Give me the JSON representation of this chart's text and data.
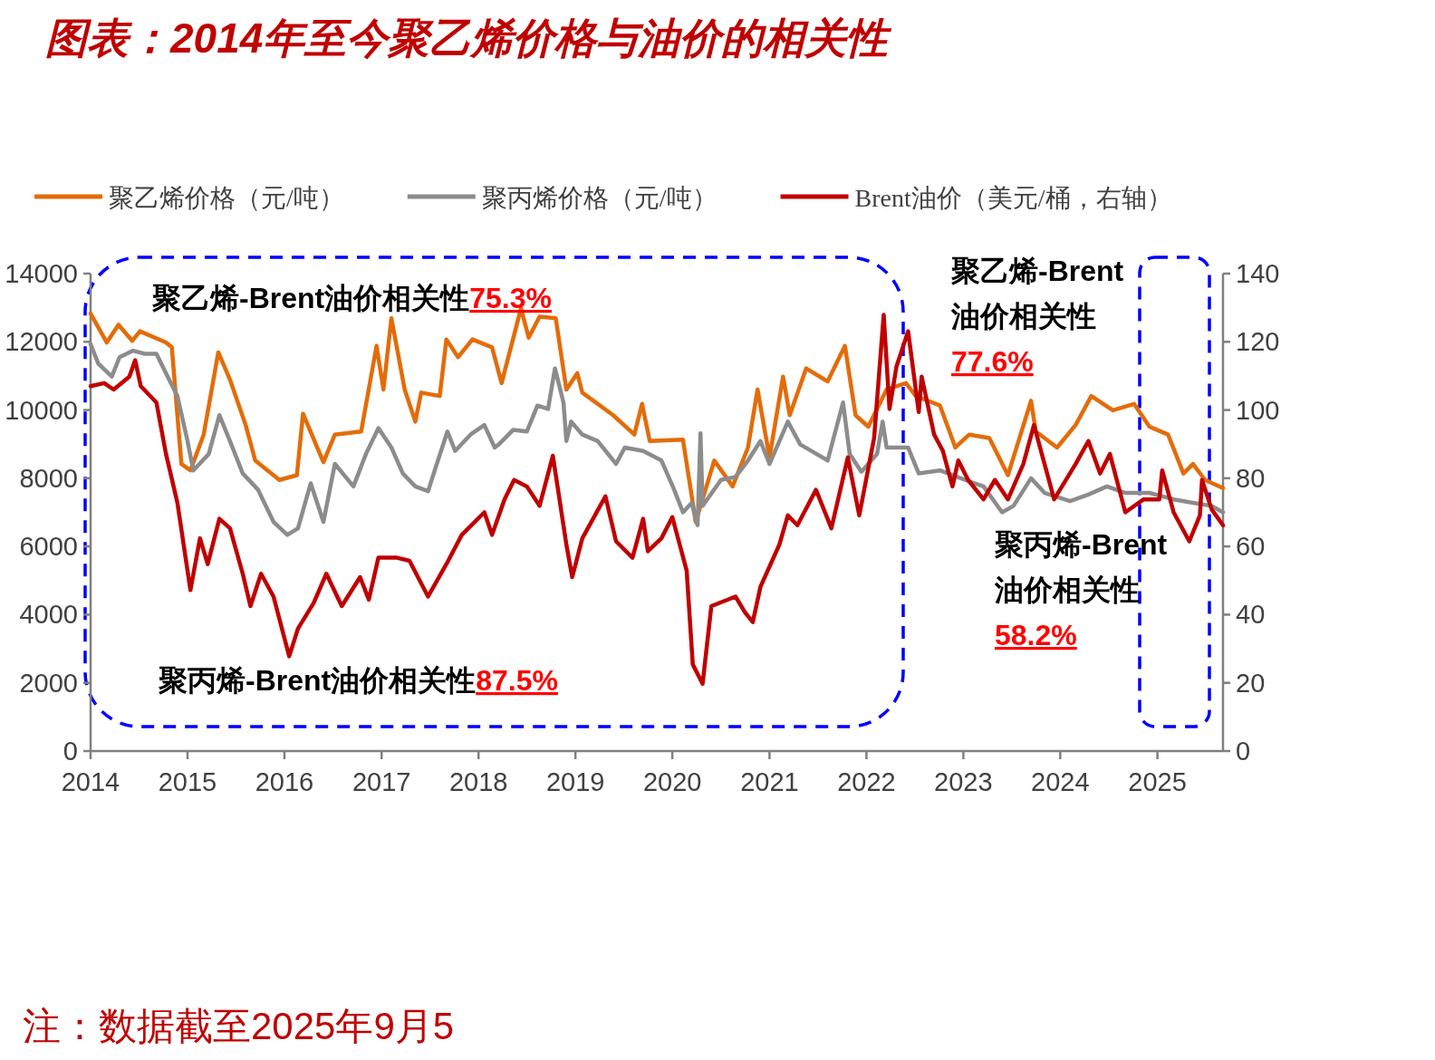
{
  "chart_data": {
    "type": "line",
    "title": "图表：2014年至今聚乙烯价格与油价的相关性",
    "xlim": [
      "2014-01-01",
      "2025-09-05"
    ],
    "xticks": [
      "2014",
      "2015",
      "2016",
      "2017",
      "2018",
      "2019",
      "2020",
      "2021",
      "2022",
      "2023",
      "2024",
      "2025"
    ],
    "ylim": [
      0,
      14000
    ],
    "yticks": [
      0,
      2000,
      4000,
      6000,
      8000,
      10000,
      12000,
      14000
    ],
    "y2lim": [
      0,
      140
    ],
    "y2ticks": [
      0,
      20,
      40,
      60,
      80,
      100,
      120,
      140
    ],
    "legend": "top",
    "grid": false,
    "line_style": "solid",
    "series": [
      {
        "name": "聚乙烯价格（元/吨）",
        "color": "#e36c09",
        "x": [
          "2014-01-01",
          "2014-03-03",
          "2014-04-16",
          "2014-06-07",
          "2014-07-06",
          "2014-10-12",
          "2014-11-03",
          "2014-12-09",
          "2015-01-12",
          "2015-03-03",
          "2015-04-27",
          "2015-06-10",
          "2015-08-08",
          "2015-09-13",
          "2015-12-13",
          "2016-02-17",
          "2016-03-11",
          "2016-05-27",
          "2016-07-09",
          "2016-10-16",
          "2016-12-13",
          "2017-01-08",
          "2017-02-07",
          "2017-03-29",
          "2017-05-08",
          "2017-05-30",
          "2017-08-08",
          "2017-09-02",
          "2017-10-16",
          "2017-12-09",
          "2018-02-21",
          "2018-03-29",
          "2018-06-10",
          "2018-07-09",
          "2018-08-19",
          "2018-10-19",
          "2018-11-28",
          "2019-01-08",
          "2019-01-27",
          "2019-05-23",
          "2019-08-11",
          "2019-09-09",
          "2019-10-08",
          "2020-02-10",
          "2020-03-29",
          "2020-06-07",
          "2020-08-15",
          "2020-10-12",
          "2020-11-17",
          "2021-01-01",
          "2021-02-21",
          "2021-03-18",
          "2021-05-19",
          "2021-08-08",
          "2021-10-12",
          "2021-11-21",
          "2022-01-08",
          "2022-03-18",
          "2022-05-30",
          "2022-07-06",
          "2022-10-05",
          "2022-12-02",
          "2023-01-23",
          "2023-04-09",
          "2023-06-18",
          "2023-09-13",
          "2023-10-01",
          "2023-12-20",
          "2024-02-28",
          "2024-04-27",
          "2024-07-17",
          "2024-10-05",
          "2024-12-02",
          "2025-02-10",
          "2025-04-09",
          "2025-05-15",
          "2025-06-29",
          "2025-09-05"
        ],
        "values": [
          12830,
          11980,
          12500,
          12030,
          12310,
          11980,
          11840,
          8420,
          8230,
          9280,
          11690,
          10890,
          9560,
          8520,
          7950,
          8090,
          9890,
          8470,
          9280,
          9370,
          11880,
          10600,
          12690,
          10600,
          9660,
          10510,
          10410,
          12070,
          11550,
          12070,
          11840,
          10790,
          12980,
          12120,
          12740,
          12690,
          10600,
          11080,
          10510,
          9850,
          9280,
          10180,
          9090,
          9130,
          6720,
          8520,
          7760,
          8900,
          10600,
          8610,
          10980,
          9850,
          11220,
          10840,
          11880,
          9850,
          9510,
          10600,
          10790,
          10410,
          10130,
          8900,
          9280,
          9180,
          8090,
          10270,
          9370,
          8900,
          9560,
          10410,
          9990,
          10180,
          9510,
          9280,
          8140,
          8420,
          7950,
          7710
        ]
      },
      {
        "name": "聚丙烯价格（元/吨）",
        "color": "#8c8c8c",
        "x": [
          "2014-01-01",
          "2014-01-30",
          "2014-03-22",
          "2014-04-20",
          "2014-06-10",
          "2014-07-24",
          "2014-09-06",
          "2014-10-12",
          "2014-11-24",
          "2015-01-01",
          "2015-01-23",
          "2015-03-22",
          "2015-05-01",
          "2015-06-10",
          "2015-07-28",
          "2015-09-24",
          "2015-11-21",
          "2016-01-12",
          "2016-02-21",
          "2016-04-09",
          "2016-05-27",
          "2016-07-09",
          "2016-09-17",
          "2016-11-03",
          "2016-12-20",
          "2017-02-07",
          "2017-03-22",
          "2017-05-08",
          "2017-06-25",
          "2017-07-28",
          "2017-09-06",
          "2017-10-05",
          "2017-12-02",
          "2018-01-23",
          "2018-03-03",
          "2018-03-18",
          "2018-05-12",
          "2018-07-02",
          "2018-08-11",
          "2018-09-20",
          "2018-10-16",
          "2018-11-17",
          "2018-11-28",
          "2018-12-16",
          "2019-01-27",
          "2019-03-26",
          "2019-06-03",
          "2019-07-06",
          "2019-09-13",
          "2019-11-21",
          "2020-01-08",
          "2020-02-10",
          "2020-03-14",
          "2020-04-05",
          "2020-04-16",
          "2020-04-24",
          "2020-07-02",
          "2020-08-26",
          "2020-10-12",
          "2020-11-28",
          "2021-01-01",
          "2021-03-11",
          "2021-04-27",
          "2021-08-08",
          "2021-10-05",
          "2021-10-30",
          "2021-12-13",
          "2022-02-10",
          "2022-03-03",
          "2022-03-18",
          "2022-06-07",
          "2022-07-17",
          "2022-10-05",
          "2023-01-08",
          "2023-03-18",
          "2023-05-27",
          "2023-07-09",
          "2023-09-13",
          "2023-11-03",
          "2024-02-07",
          "2024-04-16",
          "2024-06-25",
          "2024-09-02",
          "2024-12-02",
          "2025-03-03",
          "2025-05-15",
          "2025-07-24",
          "2025-09-05"
        ],
        "values": [
          11930,
          11360,
          10980,
          11550,
          11740,
          11650,
          11650,
          11080,
          10410,
          9090,
          8230,
          8710,
          9850,
          9090,
          8140,
          7660,
          6720,
          6340,
          6530,
          7850,
          6720,
          8420,
          7760,
          8710,
          9470,
          8900,
          8140,
          7760,
          7620,
          8420,
          9370,
          8800,
          9280,
          9560,
          8900,
          8990,
          9420,
          9370,
          10130,
          10030,
          11220,
          10220,
          9090,
          9660,
          9280,
          9090,
          8420,
          8900,
          8800,
          8520,
          7660,
          7000,
          7280,
          6620,
          9320,
          7190,
          7950,
          8040,
          8520,
          9090,
          8420,
          9660,
          8990,
          8520,
          10220,
          8710,
          8190,
          8710,
          9660,
          8900,
          8900,
          8140,
          8230,
          7950,
          7760,
          7000,
          7190,
          8000,
          7570,
          7330,
          7520,
          7760,
          7570,
          7570,
          7380,
          7280,
          7190,
          7000
        ]
      },
      {
        "name": "Brent油价（美元/桶，右轴）",
        "color": "#c00000",
        "axis": "y2",
        "x": [
          "2014-01-01",
          "2014-02-21",
          "2014-03-29",
          "2014-05-27",
          "2014-06-18",
          "2014-07-09",
          "2014-09-06",
          "2014-10-12",
          "2014-11-24",
          "2015-01-12",
          "2015-02-17",
          "2015-03-18",
          "2015-05-01",
          "2015-06-10",
          "2015-07-28",
          "2015-08-26",
          "2015-10-05",
          "2015-11-21",
          "2016-01-19",
          "2016-02-21",
          "2016-04-20",
          "2016-06-07",
          "2016-08-04",
          "2016-10-12",
          "2016-11-14",
          "2016-12-20",
          "2017-02-28",
          "2017-04-16",
          "2017-06-25",
          "2017-09-02",
          "2017-10-30",
          "2018-01-23",
          "2018-02-21",
          "2018-04-09",
          "2018-05-15",
          "2018-07-02",
          "2018-08-19",
          "2018-10-08",
          "2018-11-28",
          "2018-12-20",
          "2019-01-27",
          "2019-04-24",
          "2019-06-03",
          "2019-08-04",
          "2019-09-13",
          "2019-10-01",
          "2019-11-21",
          "2020-01-01",
          "2020-02-24",
          "2020-03-18",
          "2020-04-24",
          "2020-05-27",
          "2020-08-26",
          "2020-10-01",
          "2020-10-30",
          "2020-11-28",
          "2021-02-07",
          "2021-03-11",
          "2021-04-16",
          "2021-06-25",
          "2021-08-22",
          "2021-10-23",
          "2021-12-05",
          "2022-01-30",
          "2022-03-07",
          "2022-03-29",
          "2022-04-24",
          "2022-06-07",
          "2022-07-17",
          "2022-07-28",
          "2022-09-13",
          "2022-10-16",
          "2022-11-21",
          "2022-12-13",
          "2023-01-19",
          "2023-03-18",
          "2023-04-30",
          "2023-06-18",
          "2023-08-15",
          "2023-09-24",
          "2023-12-09",
          "2024-02-28",
          "2024-04-16",
          "2024-05-30",
          "2024-07-06",
          "2024-09-02",
          "2024-11-10",
          "2025-01-08",
          "2025-01-19",
          "2025-03-03",
          "2025-05-01",
          "2025-06-10",
          "2025-06-18",
          "2025-07-24",
          "2025-09-05"
        ],
        "values": [
          107.0,
          107.9,
          106.0,
          109.8,
          114.6,
          107.0,
          102.2,
          87.1,
          72.8,
          47.2,
          62.4,
          54.8,
          68.1,
          65.3,
          52.0,
          42.5,
          52.0,
          45.3,
          27.8,
          35.9,
          43.4,
          52.0,
          42.5,
          51.0,
          44.4,
          56.7,
          56.7,
          55.8,
          45.3,
          54.8,
          63.4,
          70.0,
          63.4,
          73.8,
          79.5,
          77.6,
          71.9,
          86.6,
          60.5,
          51.0,
          62.4,
          74.7,
          61.5,
          56.7,
          68.1,
          58.6,
          62.4,
          68.6,
          52.9,
          25.4,
          19.7,
          42.5,
          45.3,
          40.6,
          37.8,
          48.2,
          60.5,
          69.1,
          66.2,
          76.6,
          65.3,
          86.1,
          69.1,
          91.8,
          127.9,
          100.3,
          112.7,
          123.1,
          99.4,
          109.8,
          92.8,
          88.0,
          77.6,
          85.2,
          79.5,
          73.8,
          79.5,
          73.8,
          84.2,
          95.6,
          73.8,
          84.2,
          90.9,
          81.4,
          87.1,
          70.0,
          73.8,
          73.8,
          82.3,
          70.0,
          61.5,
          69.1,
          79.5,
          70.9,
          66.2
        ]
      }
    ],
    "annotations": [
      "聚乙烯-Brent油价相关性75.3%",
      "聚丙烯-Brent油价相关性87.5%",
      "聚乙烯-Brent\n油价相关性\n77.6%",
      "聚丙烯-Brent\n油价相关性\n58.2%",
      "注：数据截至2025年9月5"
    ]
  }
}
